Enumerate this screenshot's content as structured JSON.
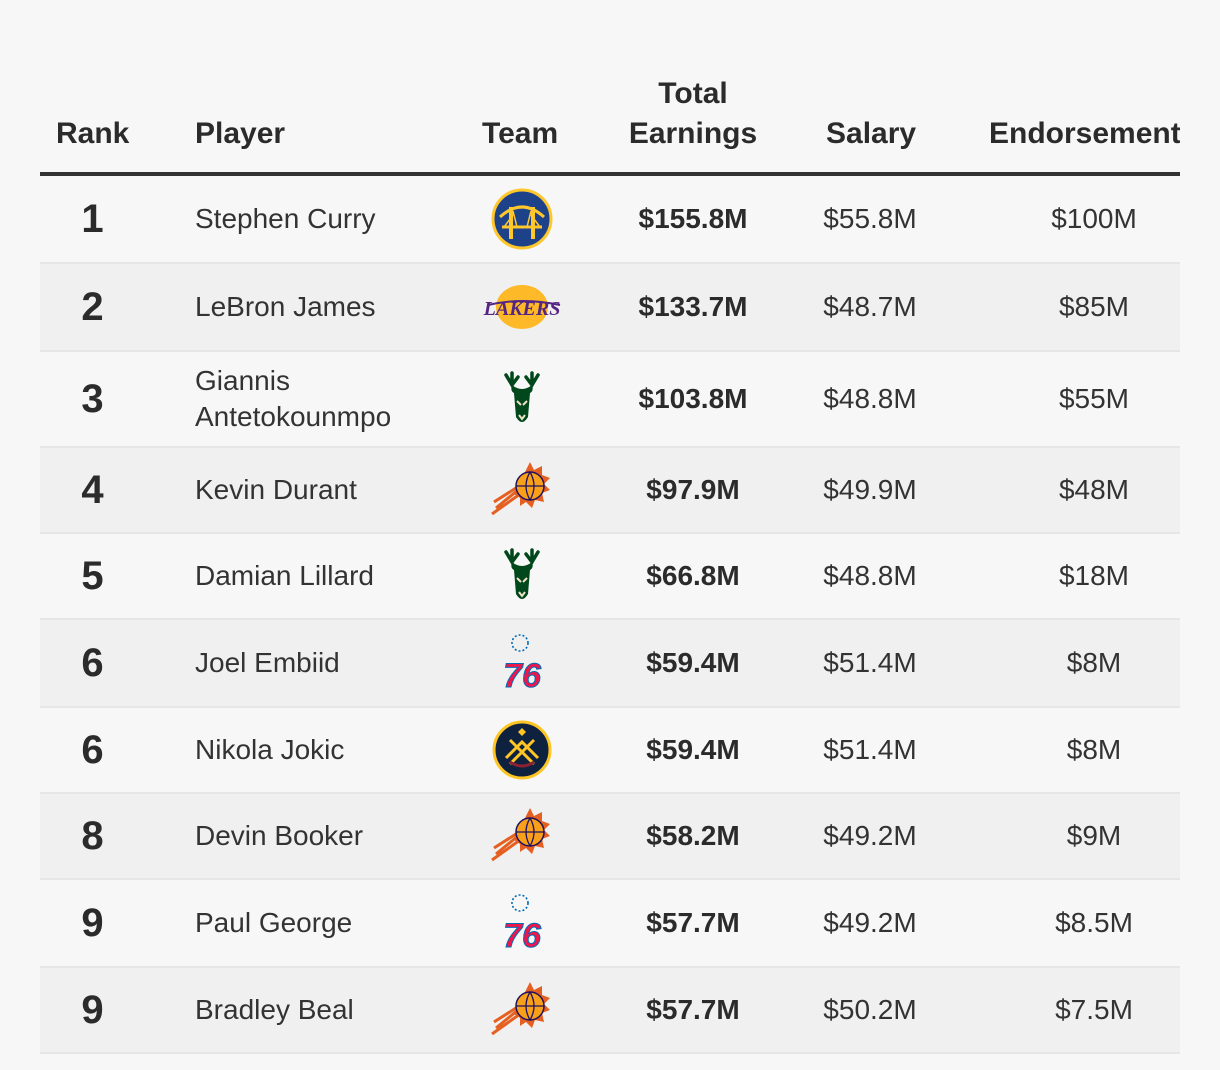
{
  "chart_data": {
    "type": "table",
    "columns": {
      "rank": "Rank",
      "player": "Player",
      "team": "Team",
      "total_line1": "Total",
      "total_line2": "Earnings",
      "salary": "Salary",
      "endorsements": "Endorsement"
    },
    "rows": [
      {
        "rank": "1",
        "player": "Stephen Curry",
        "team_logo": "warriors-logo",
        "total": "$155.8M",
        "salary": "$55.8M",
        "endorsements": "$100M"
      },
      {
        "rank": "2",
        "player": "LeBron James",
        "team_logo": "lakers-logo",
        "total": "$133.7M",
        "salary": "$48.7M",
        "endorsements": "$85M"
      },
      {
        "rank": "3",
        "player": "Giannis Antetokounmpo",
        "team_logo": "bucks-logo",
        "total": "$103.8M",
        "salary": "$48.8M",
        "endorsements": "$55M"
      },
      {
        "rank": "4",
        "player": "Kevin Durant",
        "team_logo": "suns-logo",
        "total": "$97.9M",
        "salary": "$49.9M",
        "endorsements": "$48M"
      },
      {
        "rank": "5",
        "player": "Damian Lillard",
        "team_logo": "bucks-logo",
        "total": "$66.8M",
        "salary": "$48.8M",
        "endorsements": "$18M"
      },
      {
        "rank": "6",
        "player": "Joel Embiid",
        "team_logo": "76ers-logo",
        "total": "$59.4M",
        "salary": "$51.4M",
        "endorsements": "$8M"
      },
      {
        "rank": "6",
        "player": "Nikola Jokic",
        "team_logo": "nuggets-logo",
        "total": "$59.4M",
        "salary": "$51.4M",
        "endorsements": "$8M"
      },
      {
        "rank": "8",
        "player": "Devin Booker",
        "team_logo": "suns-logo",
        "total": "$58.2M",
        "salary": "$49.2M",
        "endorsements": "$9M"
      },
      {
        "rank": "9",
        "player": "Paul George",
        "team_logo": "76ers-logo",
        "total": "$57.7M",
        "salary": "$49.2M",
        "endorsements": "$8.5M"
      },
      {
        "rank": "9",
        "player": "Bradley Beal",
        "team_logo": "suns-logo",
        "total": "$57.7M",
        "salary": "$50.2M",
        "endorsements": "$7.5M"
      }
    ]
  },
  "logos": {
    "lakers_text": "LAKERS",
    "sixers_text": "76"
  },
  "colors": {
    "warriors_blue": "#1D428A",
    "warriors_gold": "#FFC72C",
    "lakers_purple": "#552583",
    "lakers_gold": "#FDB927",
    "bucks_green": "#00471B",
    "bucks_cream": "#EEE1C6",
    "suns_orange": "#E56020",
    "suns_purple": "#1D1160",
    "sixers_red": "#ED174C",
    "sixers_blue": "#006BB6",
    "nuggets_navy": "#0E2240",
    "nuggets_gold": "#FEC524"
  }
}
